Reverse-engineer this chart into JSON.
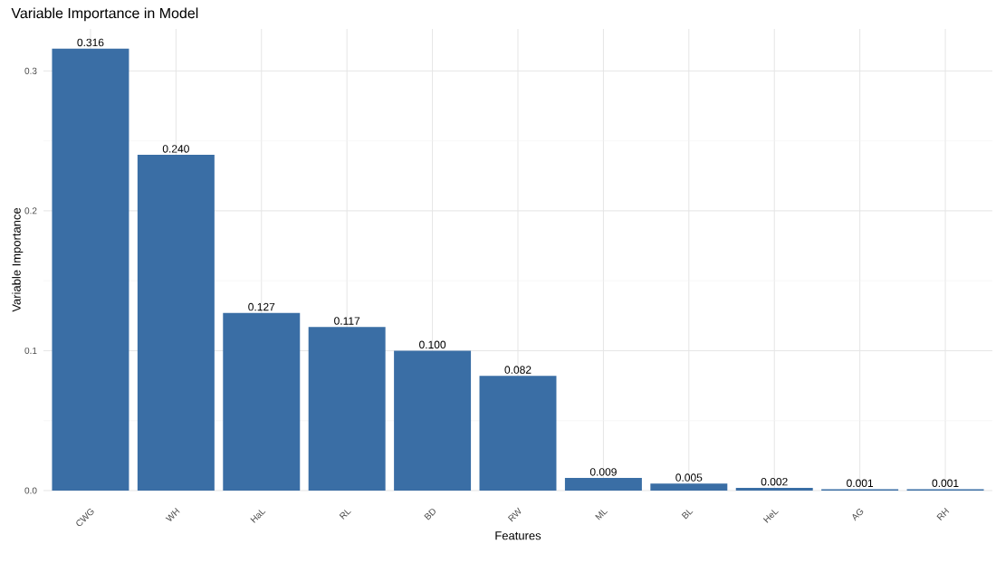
{
  "chart_data": {
    "type": "bar",
    "title": "Variable Importance in Model",
    "xlabel": "Features",
    "ylabel": "Variable Importance",
    "categories": [
      "CWG",
      "WH",
      "HaL",
      "RL",
      "BD",
      "RW",
      "ML",
      "BL",
      "HeL",
      "AG",
      "RH"
    ],
    "values": [
      0.316,
      0.24,
      0.127,
      0.117,
      0.1,
      0.082,
      0.009,
      0.005,
      0.002,
      0.001,
      0.001
    ],
    "value_labels": [
      "0.316",
      "0.240",
      "0.127",
      "0.117",
      "0.100",
      "0.082",
      "0.009",
      "0.005",
      "0.002",
      "0.001",
      "0.001"
    ],
    "color": "#3a6ea5",
    "ylim": [
      0,
      0.33
    ],
    "yticks": [
      {
        "value": 0,
        "label": "0.0"
      },
      {
        "value": 0.1,
        "label": "0.1"
      },
      {
        "value": 0.2,
        "label": "0.2"
      },
      {
        "value": 0.3,
        "label": "0.3"
      }
    ],
    "grid": true
  }
}
